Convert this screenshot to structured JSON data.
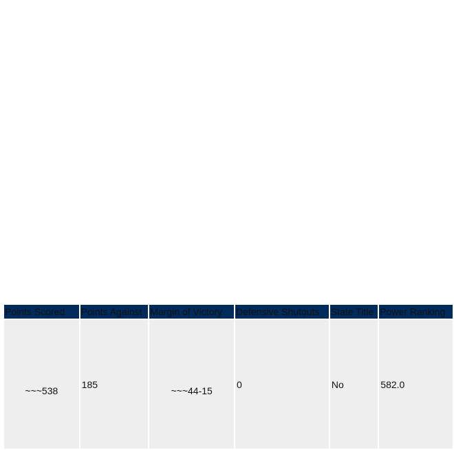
{
  "table": {
    "headers": [
      "Points Scored",
      "Points Against",
      "Margin of Victory",
      "Defensive Shutouts",
      "State Title",
      "Power Ranking"
    ],
    "rows": [
      [
        "~~~538",
        "185",
        "~~~44-15",
        "0",
        "No",
        "582.0"
      ]
    ]
  }
}
